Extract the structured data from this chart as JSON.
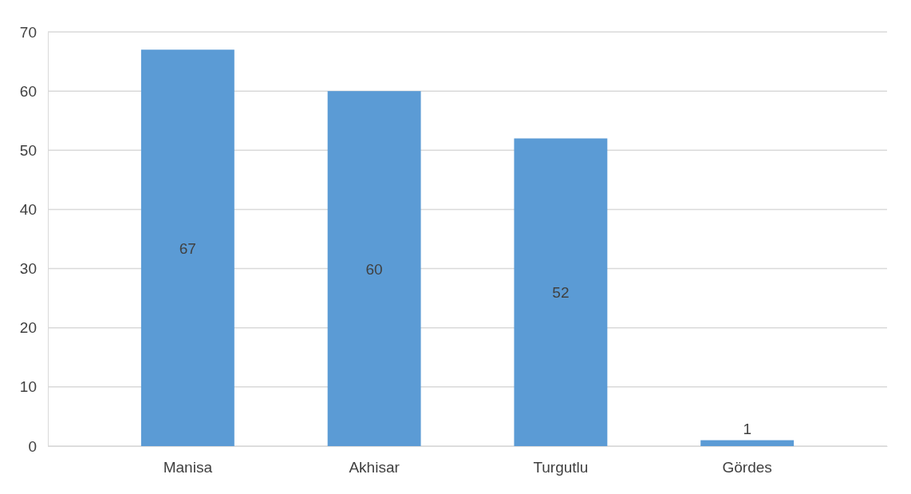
{
  "chart_data": {
    "type": "bar",
    "categories": [
      "Manisa",
      "Akhisar",
      "Turgutlu",
      "Gördes"
    ],
    "values": [
      67,
      60,
      52,
      1
    ],
    "color": "#5b9bd5",
    "ylim": [
      0,
      70
    ],
    "yticks": [
      0,
      10,
      20,
      30,
      40,
      50,
      60,
      70
    ],
    "grid": true,
    "data_labels": true
  }
}
